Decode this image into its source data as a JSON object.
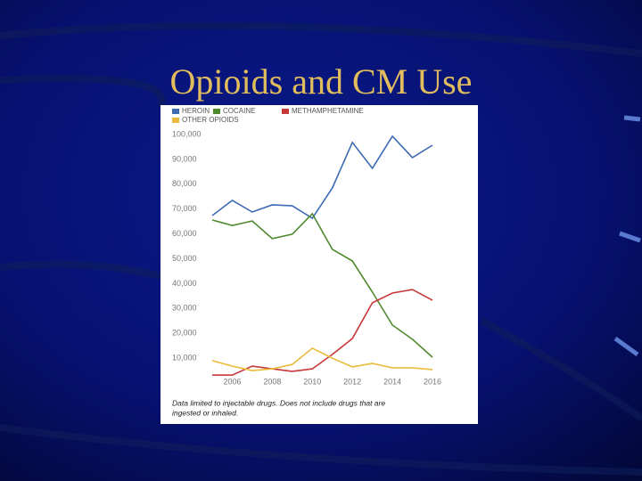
{
  "chart_data": {
    "type": "line",
    "title": "Opioids and CM Use",
    "caption": [
      "Data limited to injectable drugs. Does not include drugs that are",
      "ingested or inhaled."
    ],
    "x": [
      2005,
      2006,
      2007,
      2008,
      2009,
      2010,
      2011,
      2012,
      2013,
      2014,
      2015,
      2016
    ],
    "xlim": [
      2005,
      2016
    ],
    "xticks": [
      2006,
      2008,
      2010,
      2012,
      2014,
      2016
    ],
    "ylim": [
      0,
      100000
    ],
    "yticks": [
      {
        "value": 10000,
        "label": "10,000"
      },
      {
        "value": 20000,
        "label": "20,000"
      },
      {
        "value": 30000,
        "label": "30,000"
      },
      {
        "value": 40000,
        "label": "40,000"
      },
      {
        "value": 50000,
        "label": "50,000"
      },
      {
        "value": 60000,
        "label": "60,000"
      },
      {
        "value": 70000,
        "label": "70,000"
      },
      {
        "value": 80000,
        "label": "80,000"
      },
      {
        "value": 90000,
        "label": "90,000"
      },
      {
        "value": 100000,
        "label": "100,000"
      }
    ],
    "grid": false,
    "series": [
      {
        "name": "HEROIN",
        "color": "#3d6bb3",
        "values": [
          67400,
          73500,
          68800,
          71700,
          71300,
          66300,
          78500,
          96800,
          86400,
          99300,
          90700,
          95700
        ]
      },
      {
        "name": "COCAINE",
        "color": "#4f8a2e",
        "values": [
          65600,
          63400,
          65200,
          58100,
          59900,
          68100,
          53800,
          49100,
          36600,
          23300,
          17600,
          10400
        ]
      },
      {
        "name": "METHAMPHETAMINE",
        "color": "#c8383a",
        "values": [
          3200,
          3200,
          6800,
          5700,
          4700,
          5700,
          11500,
          17900,
          32300,
          36200,
          37600,
          33300
        ]
      },
      {
        "name": "OTHER OPIOIDS",
        "color": "#eabb3a",
        "values": [
          9000,
          6800,
          5000,
          5700,
          7500,
          14000,
          10000,
          6500,
          7900,
          6100,
          6100,
          5400
        ]
      }
    ]
  }
}
